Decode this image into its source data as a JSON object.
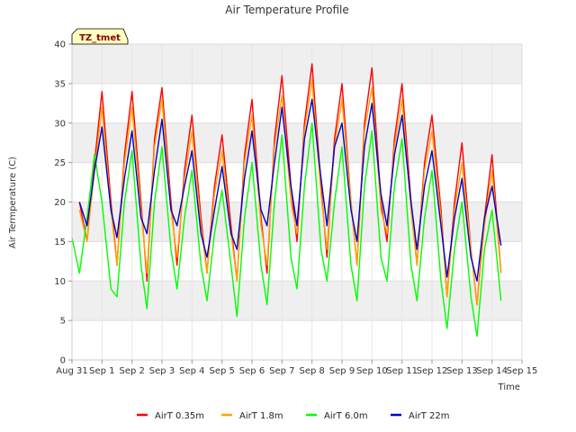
{
  "chart_data": {
    "type": "line",
    "title": "Air Temperature Profile",
    "xlabel": "Time",
    "ylabel": "Air Termperature (C)",
    "ylim": [
      0,
      40
    ],
    "yticks": [
      0,
      5,
      10,
      15,
      20,
      25,
      30,
      35,
      40
    ],
    "xlim": [
      0,
      15
    ],
    "xticks": [
      0,
      1,
      2,
      3,
      4,
      5,
      6,
      7,
      8,
      9,
      10,
      11,
      12,
      13,
      14,
      15
    ],
    "xtick_labels": [
      "Aug 31",
      "Sep 1",
      "Sep 2",
      "Sep 3",
      "Sep 4",
      "Sep 5",
      "Sep 6",
      "Sep 7",
      "Sep 8",
      "Sep 9",
      "Sep 10",
      "Sep 11",
      "Sep 12",
      "Sep 13",
      "Sep 14",
      "Sep 15"
    ],
    "grid": true,
    "legend_position": "bottom",
    "badge": "TZ_tmet",
    "series": [
      {
        "name": "AirT 0.35m",
        "color": "#ff0000",
        "x": [
          0.25,
          0.5,
          0.75,
          1.0,
          1.3,
          1.5,
          1.75,
          2.0,
          2.3,
          2.5,
          2.75,
          3.0,
          3.3,
          3.5,
          3.75,
          4.0,
          4.3,
          4.5,
          4.75,
          5.0,
          5.3,
          5.5,
          5.75,
          6.0,
          6.3,
          6.5,
          6.75,
          7.0,
          7.3,
          7.5,
          7.75,
          8.0,
          8.3,
          8.5,
          8.75,
          9.0,
          9.3,
          9.5,
          9.75,
          10.0,
          10.3,
          10.5,
          10.75,
          11.0,
          11.3,
          11.5,
          11.75,
          12.0,
          12.3,
          12.5,
          12.75,
          13.0,
          13.3,
          13.5,
          13.75,
          14.0,
          14.3
        ],
        "y": [
          20,
          15,
          25,
          34,
          20,
          12,
          26,
          34,
          20,
          10,
          28,
          34.5,
          20,
          12,
          24,
          31,
          18,
          11,
          22,
          28.5,
          17,
          10,
          26,
          33,
          18,
          11,
          28,
          36,
          22,
          15,
          30,
          37.5,
          22,
          13,
          28,
          35,
          20,
          12,
          30,
          37,
          20,
          15,
          28,
          35,
          20,
          12,
          25,
          31,
          19,
          8,
          20,
          27.5,
          14,
          7,
          18,
          26,
          11
        ]
      },
      {
        "name": "AirT 1.8m",
        "color": "#ffa500",
        "x": [
          0.25,
          0.5,
          0.75,
          1.0,
          1.3,
          1.5,
          1.75,
          2.0,
          2.3,
          2.5,
          2.75,
          3.0,
          3.3,
          3.5,
          3.75,
          4.0,
          4.3,
          4.5,
          4.75,
          5.0,
          5.3,
          5.5,
          5.75,
          6.0,
          6.3,
          6.5,
          6.75,
          7.0,
          7.3,
          7.5,
          7.75,
          8.0,
          8.3,
          8.5,
          8.75,
          9.0,
          9.3,
          9.5,
          9.75,
          10.0,
          10.3,
          10.5,
          10.75,
          11.0,
          11.3,
          11.5,
          11.75,
          12.0,
          12.3,
          12.5,
          12.75,
          13.0,
          13.3,
          13.5,
          13.75,
          14.0,
          14.3
        ],
        "y": [
          19,
          15,
          24,
          32,
          19,
          12,
          25,
          32,
          19,
          11,
          27,
          33,
          19,
          13,
          23,
          29,
          17,
          11,
          21,
          26.5,
          16,
          10,
          25,
          31,
          17,
          12,
          27,
          33.5,
          20,
          16,
          29,
          35.5,
          21,
          14,
          27,
          33,
          20,
          12,
          29,
          34.5,
          19,
          16,
          27,
          33,
          19,
          12,
          24,
          29,
          18,
          8,
          19,
          25,
          14,
          7,
          17,
          24,
          11
        ]
      },
      {
        "name": "AirT 6.0m",
        "color": "#00ff00",
        "x": [
          0.0,
          0.25,
          0.5,
          0.75,
          1.0,
          1.3,
          1.5,
          1.75,
          2.0,
          2.3,
          2.5,
          2.75,
          3.0,
          3.3,
          3.5,
          3.75,
          4.0,
          4.3,
          4.5,
          4.75,
          5.0,
          5.3,
          5.5,
          5.75,
          6.0,
          6.3,
          6.5,
          6.75,
          7.0,
          7.3,
          7.5,
          7.75,
          8.0,
          8.3,
          8.5,
          8.75,
          9.0,
          9.3,
          9.5,
          9.75,
          10.0,
          10.3,
          10.5,
          10.75,
          11.0,
          11.3,
          11.5,
          11.75,
          12.0,
          12.3,
          12.5,
          12.75,
          13.0,
          13.3,
          13.5,
          13.75,
          14.0,
          14.3
        ],
        "y": [
          15.5,
          11,
          18,
          26,
          20,
          9,
          8,
          20,
          26.5,
          12,
          6.5,
          20,
          27,
          14,
          9,
          18,
          24,
          12,
          7.5,
          16,
          21.5,
          12,
          5.5,
          18,
          25,
          12,
          7,
          20,
          28.5,
          13,
          9,
          22,
          30,
          14,
          10,
          20,
          27,
          12,
          7.5,
          22,
          29,
          13,
          10,
          22,
          28,
          12,
          7.5,
          18,
          24,
          10,
          4,
          14,
          20,
          8,
          3,
          14,
          19,
          7.5
        ]
      },
      {
        "name": "AirT 22m",
        "color": "#0000cd",
        "x": [
          0.25,
          0.5,
          0.75,
          1.0,
          1.3,
          1.5,
          1.75,
          2.0,
          2.3,
          2.5,
          2.75,
          3.0,
          3.3,
          3.5,
          3.75,
          4.0,
          4.3,
          4.5,
          4.75,
          5.0,
          5.3,
          5.5,
          5.75,
          6.0,
          6.3,
          6.5,
          6.75,
          7.0,
          7.3,
          7.5,
          7.75,
          8.0,
          8.3,
          8.5,
          8.75,
          9.0,
          9.3,
          9.5,
          9.75,
          10.0,
          10.3,
          10.5,
          10.75,
          11.0,
          11.3,
          11.5,
          11.75,
          12.0,
          12.3,
          12.5,
          12.75,
          13.0,
          13.3,
          13.5,
          13.75,
          14.0,
          14.3
        ],
        "y": [
          20,
          17,
          24,
          29.5,
          19,
          15.5,
          23,
          29,
          18,
          16,
          24,
          30.5,
          19,
          17,
          22,
          26.5,
          16,
          13,
          19,
          24.5,
          16,
          14,
          23,
          29,
          19,
          17,
          25,
          32,
          22,
          17,
          28,
          33,
          23,
          17,
          27,
          30,
          19,
          15,
          27,
          32.5,
          21,
          17,
          26,
          31,
          20,
          14,
          22,
          26.5,
          17,
          10.5,
          18,
          23,
          13,
          10,
          18,
          22,
          14.5
        ]
      }
    ]
  }
}
